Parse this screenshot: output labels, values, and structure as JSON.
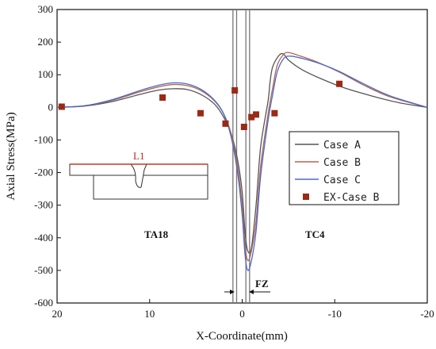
{
  "chart_data": {
    "type": "line",
    "title": "",
    "xlabel": "X-Coordinate(mm)",
    "ylabel": "Axial Stress(MPa)",
    "xlim": [
      20,
      -20
    ],
    "ylim": [
      -600,
      300
    ],
    "xticks": [
      20,
      10,
      0,
      -10,
      -20
    ],
    "yticks": [
      300,
      200,
      100,
      0,
      -100,
      -200,
      -300,
      -400,
      -500,
      -600
    ],
    "x_reversed": true,
    "legend_position": "right",
    "series": [
      {
        "name": "Case A",
        "color": "#555555",
        "points": [
          [
            20,
            0
          ],
          [
            17,
            4
          ],
          [
            14,
            18
          ],
          [
            11,
            40
          ],
          [
            9,
            53
          ],
          [
            7.5,
            57
          ],
          [
            6,
            55
          ],
          [
            4.5,
            40
          ],
          [
            3,
            10
          ],
          [
            2,
            -30
          ],
          [
            1.2,
            -80
          ],
          [
            0.5,
            -160
          ],
          [
            0,
            -260
          ],
          [
            -0.3,
            -380
          ],
          [
            -0.6,
            -440
          ],
          [
            -1,
            -430
          ],
          [
            -1.5,
            -300
          ],
          [
            -2,
            -120
          ],
          [
            -2.8,
            20
          ],
          [
            -3,
            75
          ],
          [
            -3.3,
            125
          ],
          [
            -4,
            160
          ],
          [
            -4.5,
            163
          ],
          [
            -5,
            145
          ],
          [
            -6.5,
            115
          ],
          [
            -8.5,
            88
          ],
          [
            -11,
            60
          ],
          [
            -14,
            35
          ],
          [
            -17,
            14
          ],
          [
            -20,
            0
          ]
        ]
      },
      {
        "name": "Case B",
        "color": "#b5654c",
        "points": [
          [
            20,
            0
          ],
          [
            17,
            5
          ],
          [
            14,
            22
          ],
          [
            11,
            48
          ],
          [
            9,
            63
          ],
          [
            7.5,
            70
          ],
          [
            6,
            67
          ],
          [
            4.5,
            52
          ],
          [
            3,
            20
          ],
          [
            2,
            -20
          ],
          [
            1.2,
            -80
          ],
          [
            0.5,
            -180
          ],
          [
            0,
            -300
          ],
          [
            -0.3,
            -420
          ],
          [
            -0.6,
            -470
          ],
          [
            -1,
            -440
          ],
          [
            -1.5,
            -350
          ],
          [
            -2,
            -180
          ],
          [
            -2.8,
            -20
          ],
          [
            -3.3,
            60
          ],
          [
            -3.8,
            130
          ],
          [
            -4.5,
            163
          ],
          [
            -5,
            168
          ],
          [
            -6,
            160
          ],
          [
            -8,
            140
          ],
          [
            -10.5,
            108
          ],
          [
            -13,
            70
          ],
          [
            -16,
            32
          ],
          [
            -20,
            0
          ]
        ]
      },
      {
        "name": "Case C",
        "color": "#4a6ad0",
        "points": [
          [
            20,
            0
          ],
          [
            17,
            5
          ],
          [
            14,
            24
          ],
          [
            11,
            52
          ],
          [
            9,
            68
          ],
          [
            7.5,
            75
          ],
          [
            6,
            72
          ],
          [
            4.5,
            56
          ],
          [
            3,
            22
          ],
          [
            2,
            -20
          ],
          [
            1.2,
            -90
          ],
          [
            0.5,
            -200
          ],
          [
            0,
            -330
          ],
          [
            -0.3,
            -450
          ],
          [
            -0.6,
            -500
          ],
          [
            -1,
            -470
          ],
          [
            -1.5,
            -380
          ],
          [
            -2,
            -210
          ],
          [
            -2.8,
            -40
          ],
          [
            -3.3,
            40
          ],
          [
            -3.8,
            110
          ],
          [
            -4.5,
            150
          ],
          [
            -5.2,
            157
          ],
          [
            -6.5,
            150
          ],
          [
            -8.5,
            133
          ],
          [
            -10.5,
            110
          ],
          [
            -13,
            74
          ],
          [
            -16,
            35
          ],
          [
            -20,
            0
          ]
        ]
      },
      {
        "name": "EX-Case B",
        "color": "#9a2a16",
        "marker": "square",
        "points": [
          [
            19.5,
            2
          ],
          [
            8.6,
            30
          ],
          [
            4.5,
            -18
          ],
          [
            1.8,
            -50
          ],
          [
            0.8,
            52
          ],
          [
            -0.2,
            -60
          ],
          [
            -1,
            -30
          ],
          [
            -1.5,
            -22
          ],
          [
            -3.5,
            -18
          ],
          [
            -10.5,
            72
          ]
        ]
      }
    ],
    "annotations": {
      "region_left": "TA18",
      "region_right": "TC4",
      "fusion_zone": "FZ",
      "path_label": "L1"
    }
  }
}
